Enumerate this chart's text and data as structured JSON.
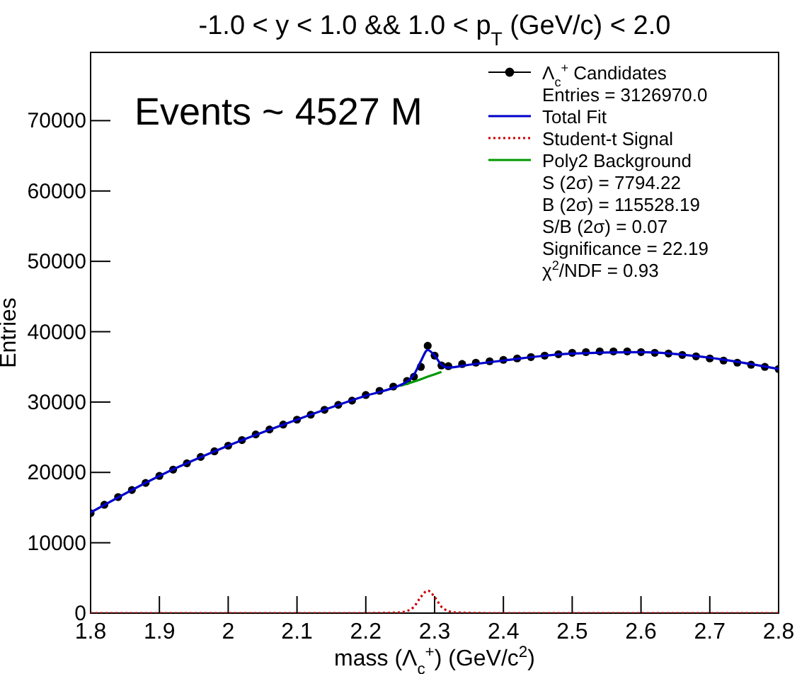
{
  "chart_data": {
    "type": "scatter",
    "title": "-1.0 < y < 1.0 && 1.0 < p$_{T}$ (GeV/c) < 2.0",
    "xlabel": "mass (Λ$_{c}$$^{+}$) (GeV/c$^{2}$)",
    "ylabel": "Entries",
    "xlim": [
      1.8,
      2.8
    ],
    "ylim": [
      0,
      79700
    ],
    "xticks": [
      1.8,
      1.9,
      2,
      2.1,
      2.2,
      2.3,
      2.4,
      2.5,
      2.6,
      2.7,
      2.8
    ],
    "yticks": [
      0,
      10000,
      20000,
      30000,
      40000,
      50000,
      60000,
      70000
    ],
    "legend": "top right",
    "annotations": [
      "Events ~ 4527 M",
      "Entries = 3126970.0",
      "S (2σ) = 7794.22",
      "B (2σ) = 115528.19",
      "S/B (2σ) = 0.07",
      "Significance = 22.19",
      "χ$^{2}$/NDF = 0.93"
    ],
    "series": [
      {
        "name": "Λ$_{c}$$^{+}$ Candidates",
        "marker": "circle",
        "color": "#000000",
        "x": [
          1.8,
          1.82,
          1.84,
          1.86,
          1.88,
          1.9,
          1.92,
          1.94,
          1.96,
          1.98,
          2.0,
          2.02,
          2.04,
          2.06,
          2.08,
          2.1,
          2.12,
          2.14,
          2.16,
          2.18,
          2.2,
          2.22,
          2.24,
          2.26,
          2.27,
          2.28,
          2.29,
          2.3,
          2.31,
          2.32,
          2.34,
          2.36,
          2.38,
          2.4,
          2.42,
          2.44,
          2.46,
          2.48,
          2.5,
          2.52,
          2.54,
          2.56,
          2.58,
          2.6,
          2.62,
          2.64,
          2.66,
          2.68,
          2.7,
          2.72,
          2.74,
          2.76,
          2.78,
          2.8
        ],
        "values": [
          14200,
          15400,
          16500,
          17500,
          18500,
          19500,
          20400,
          21300,
          22200,
          23000,
          23800,
          24600,
          25400,
          26100,
          26800,
          27500,
          28200,
          28900,
          29600,
          30200,
          31000,
          31600,
          32200,
          33000,
          33600,
          35000,
          38000,
          36600,
          35200,
          35100,
          35400,
          35600,
          35800,
          36000,
          36200,
          36400,
          36600,
          36800,
          37000,
          37100,
          37200,
          37200,
          37200,
          37100,
          37000,
          36900,
          36700,
          36500,
          36200,
          35900,
          35600,
          35300,
          35000,
          34700
        ]
      },
      {
        "name": "Total Fit",
        "type": "line",
        "marker": "none",
        "line_style": "solid",
        "color": "#0000cc",
        "x": [
          1.8,
          1.9,
          2.0,
          2.1,
          2.2,
          2.25,
          2.26,
          2.27,
          2.28,
          2.29,
          2.3,
          2.31,
          2.32,
          2.35,
          2.4,
          2.5,
          2.6,
          2.7,
          2.8
        ],
        "values": [
          14300,
          19500,
          23800,
          27500,
          30900,
          32400,
          32900,
          33900,
          35800,
          37400,
          36600,
          35300,
          34900,
          35300,
          35900,
          36900,
          37100,
          36300,
          34700
        ]
      },
      {
        "name": "Student-t Signal",
        "type": "line",
        "marker": "none",
        "line_style": "dotted",
        "color": "#cc0000",
        "x": [
          1.8,
          2.2,
          2.25,
          2.26,
          2.27,
          2.28,
          2.29,
          2.3,
          2.31,
          2.32,
          2.33,
          2.38,
          2.8
        ],
        "values": [
          0,
          0,
          100,
          300,
          900,
          2300,
          3200,
          2300,
          900,
          300,
          100,
          0,
          0
        ]
      },
      {
        "name": "Poly2 Background",
        "type": "line",
        "marker": "none",
        "line_style": "solid",
        "color": "#009900",
        "x": [
          2.25,
          2.27,
          2.29,
          2.31
        ],
        "values": [
          32300,
          32900,
          33600,
          34300
        ]
      }
    ]
  }
}
